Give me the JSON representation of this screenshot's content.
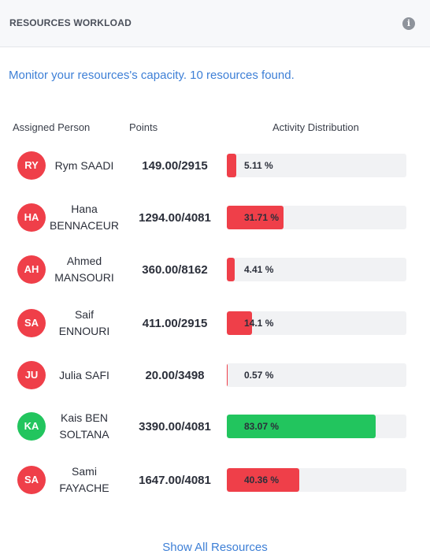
{
  "header": {
    "title": "RESOURCES WORKLOAD",
    "info_icon": "info-icon"
  },
  "subtitle": "Monitor your resources's capacity. 10 resources found.",
  "columns": {
    "person": "Assigned Person",
    "points": "Points",
    "distribution": "Activity Distribution"
  },
  "colors": {
    "red": "#ef3f49",
    "green": "#22c55e",
    "link": "#3d7fd6"
  },
  "resources": [
    {
      "initials": "RY",
      "name": "Rym SAADI",
      "points": "149.00/2915",
      "percent_label": "5.11 %",
      "percent": 5.11,
      "status": "red"
    },
    {
      "initials": "HA",
      "name": "Hana BENNACEUR",
      "points": "1294.00/4081",
      "percent_label": "31.71 %",
      "percent": 31.71,
      "status": "red"
    },
    {
      "initials": "AH",
      "name": "Ahmed MANSOURI",
      "points": "360.00/8162",
      "percent_label": "4.41 %",
      "percent": 4.41,
      "status": "red"
    },
    {
      "initials": "SA",
      "name": "Saif ENNOURI",
      "points": "411.00/2915",
      "percent_label": "14.1 %",
      "percent": 14.1,
      "status": "red"
    },
    {
      "initials": "JU",
      "name": "Julia SAFI",
      "points": "20.00/3498",
      "percent_label": "0.57 %",
      "percent": 0.57,
      "status": "red"
    },
    {
      "initials": "KA",
      "name": "Kais BEN SOLTANA",
      "points": "3390.00/4081",
      "percent_label": "83.07 %",
      "percent": 83.07,
      "status": "green"
    },
    {
      "initials": "SA",
      "name": "Sami FAYACHE",
      "points": "1647.00/4081",
      "percent_label": "40.36 %",
      "percent": 40.36,
      "status": "red"
    }
  ],
  "footer": {
    "link_label": "Show All Resources"
  }
}
